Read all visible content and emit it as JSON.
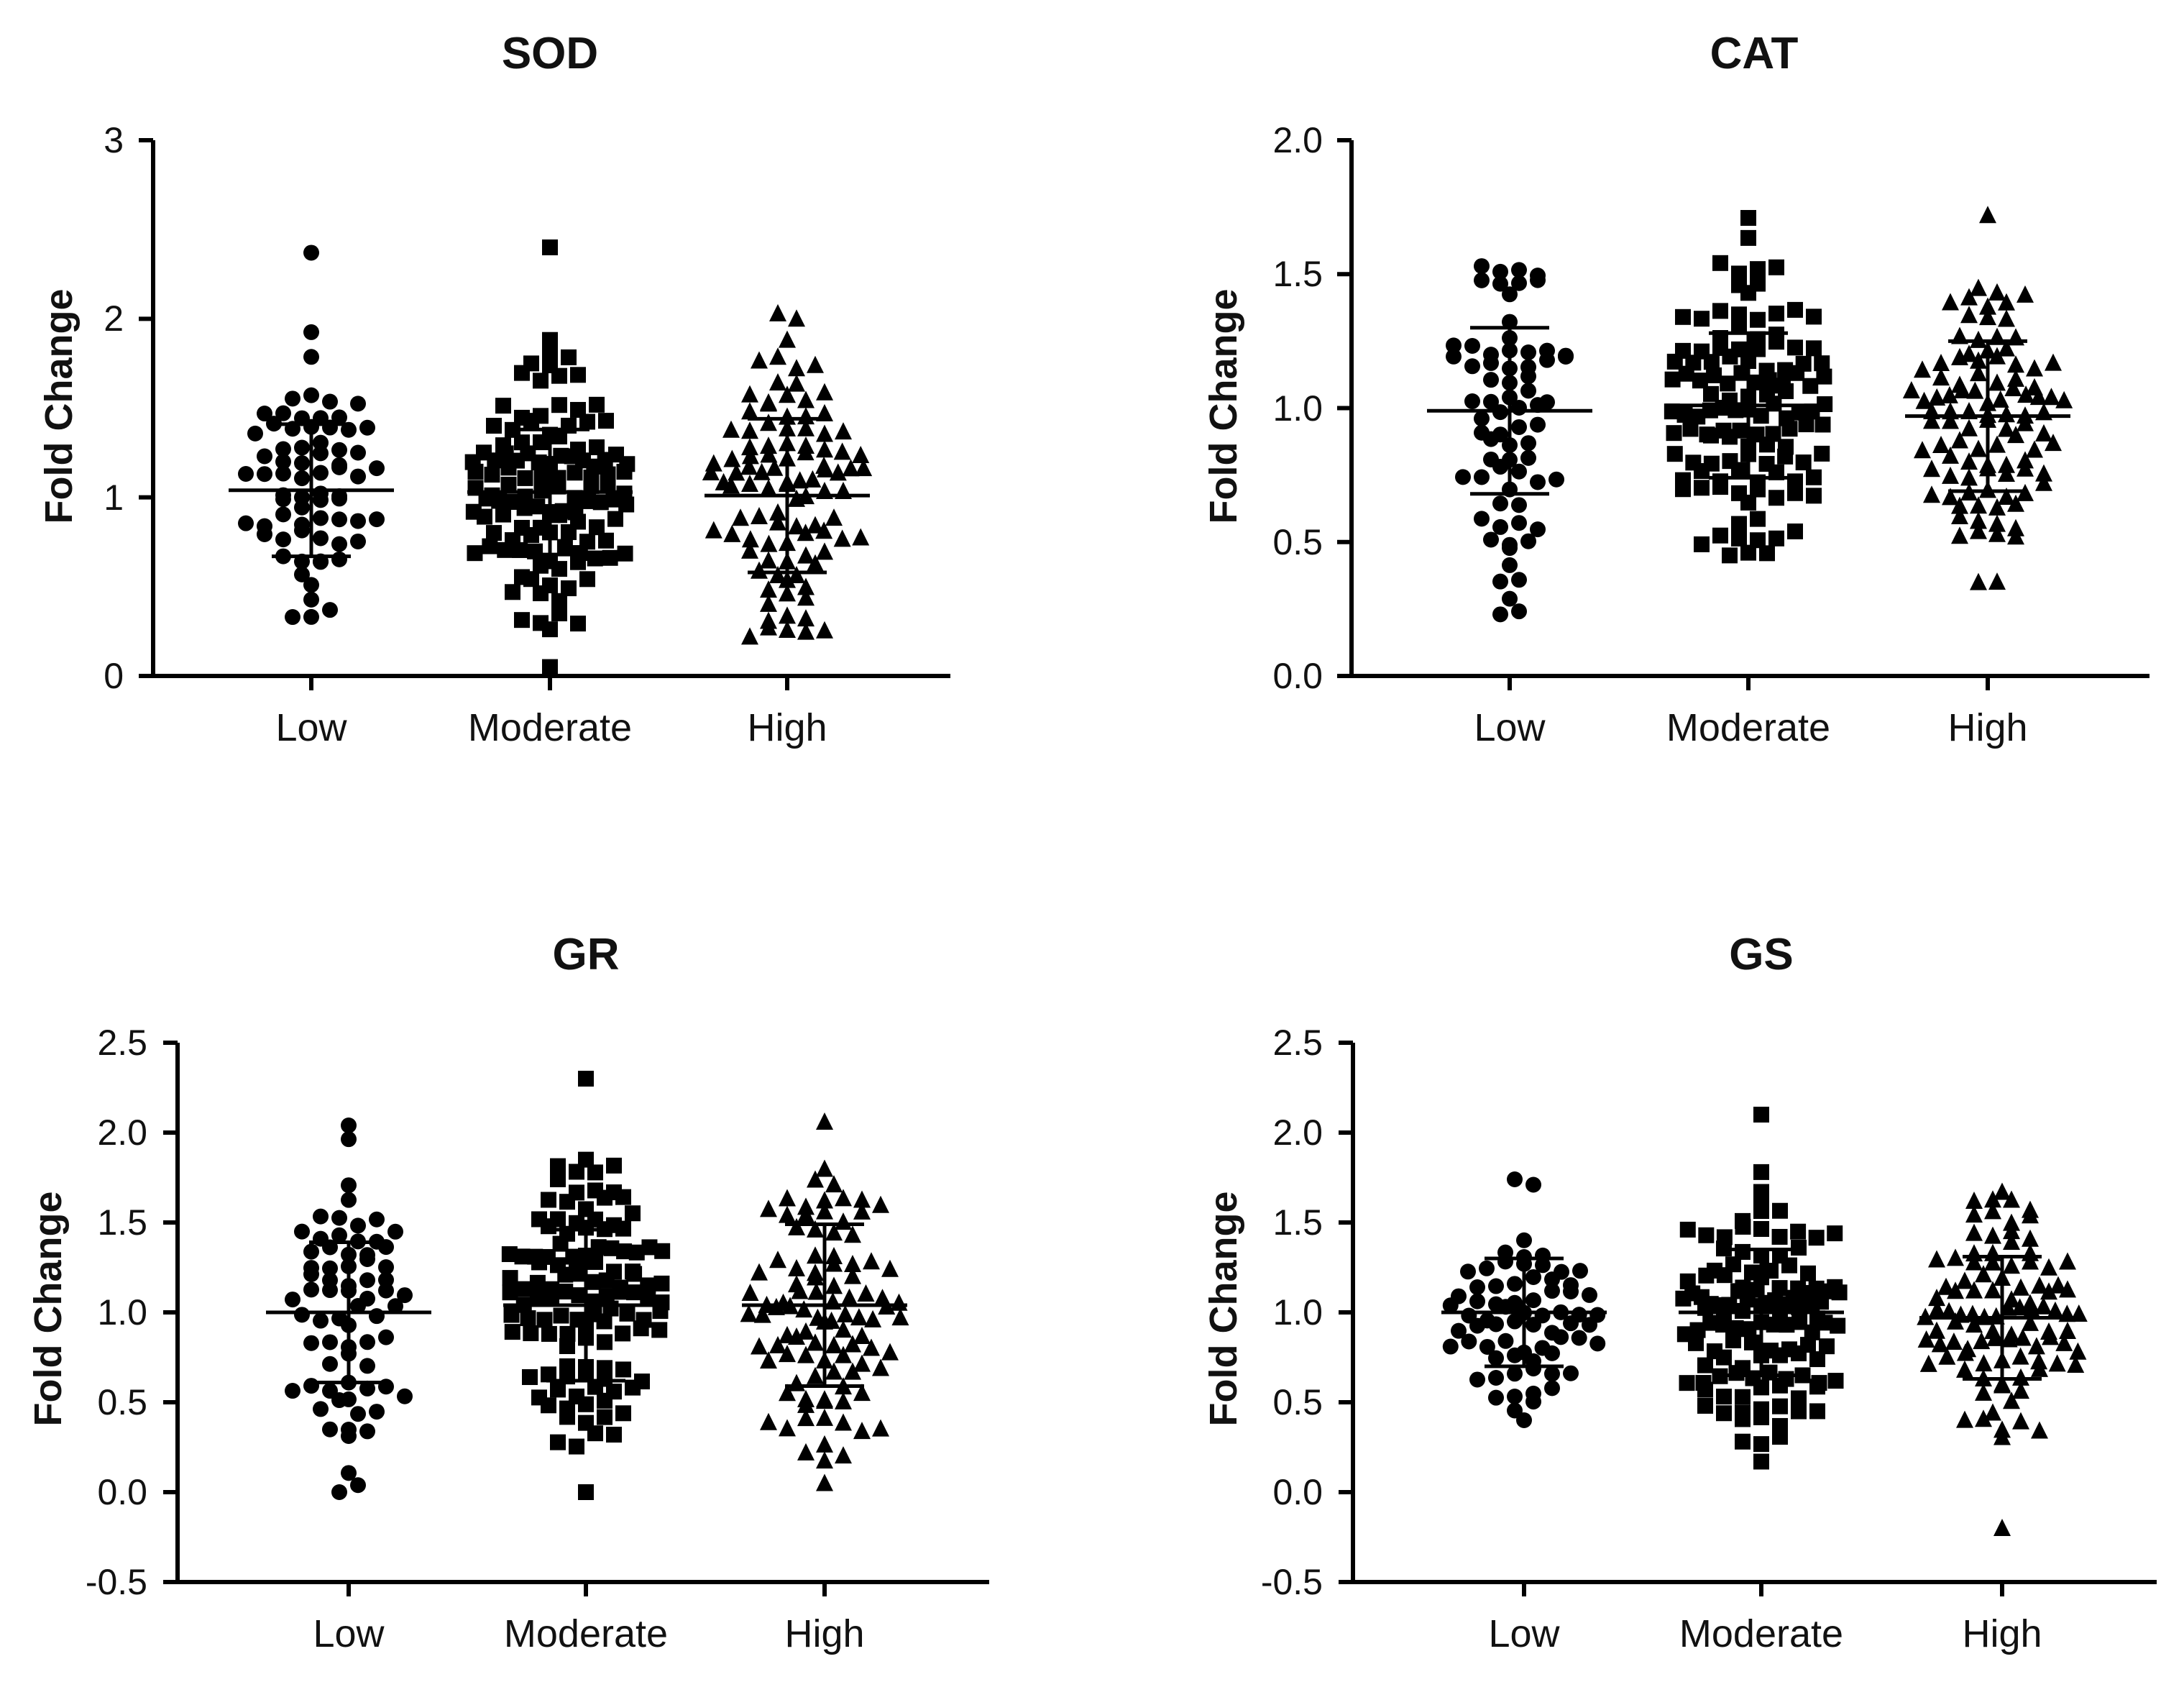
{
  "chart_data": [
    {
      "type": "scatter",
      "title": "SOD",
      "ylabel": "Fold Change",
      "xlabel": "",
      "ylim": [
        0,
        3
      ],
      "yticks": [
        "0",
        "1",
        "2",
        "3"
      ],
      "categories": [
        "Low",
        "Moderate",
        "High"
      ],
      "markers": [
        "circle",
        "square",
        "triangle"
      ],
      "groups": [
        {
          "name": "Low",
          "mean": 1.04,
          "sd": 0.37,
          "n": 70,
          "min": 0.33,
          "max": 2.37
        },
        {
          "name": "Moderate",
          "mean": 1.03,
          "sd": 0.35,
          "n": 120,
          "min": 0.05,
          "max": 2.4
        },
        {
          "name": "High",
          "mean": 1.01,
          "sd": 0.43,
          "n": 100,
          "min": 0.22,
          "max": 2.03
        }
      ]
    },
    {
      "type": "scatter",
      "title": "CAT",
      "ylabel": "Fold Change",
      "xlabel": "",
      "ylim": [
        0,
        2
      ],
      "yticks": [
        "0.0",
        "0.5",
        "1.0",
        "1.5",
        "2.0"
      ],
      "categories": [
        "Low",
        "Moderate",
        "High"
      ],
      "markers": [
        "circle",
        "square",
        "triangle"
      ],
      "groups": [
        {
          "name": "Low",
          "mean": 0.99,
          "sd": 0.31,
          "n": 70,
          "min": 0.23,
          "max": 1.53
        },
        {
          "name": "Moderate",
          "mean": 1.01,
          "sd": 0.27,
          "n": 120,
          "min": 0.45,
          "max": 1.71
        },
        {
          "name": "High",
          "mean": 0.97,
          "sd": 0.28,
          "n": 100,
          "min": 0.35,
          "max": 1.72
        }
      ]
    },
    {
      "type": "scatter",
      "title": "GR",
      "ylabel": "Fold Change",
      "xlabel": "",
      "ylim": [
        -0.5,
        2.5
      ],
      "yticks": [
        "-0.5",
        "0.0",
        "0.5",
        "1.0",
        "1.5",
        "2.0",
        "2.5"
      ],
      "categories": [
        "Low",
        "Moderate",
        "High"
      ],
      "markers": [
        "circle",
        "square",
        "triangle"
      ],
      "groups": [
        {
          "name": "Low",
          "mean": 1.0,
          "sd": 0.39,
          "n": 70,
          "min": 0.0,
          "max": 2.04
        },
        {
          "name": "Moderate",
          "mean": 1.04,
          "sd": 0.42,
          "n": 120,
          "min": 0.0,
          "max": 2.3
        },
        {
          "name": "High",
          "mean": 1.04,
          "sd": 0.45,
          "n": 100,
          "min": 0.05,
          "max": 2.06
        }
      ]
    },
    {
      "type": "scatter",
      "title": "GS",
      "ylabel": "Fold Change",
      "xlabel": "",
      "ylim": [
        -0.5,
        2.5
      ],
      "yticks": [
        "-0.5",
        "0.0",
        "0.5",
        "1.0",
        "1.5",
        "2.0",
        "2.5"
      ],
      "categories": [
        "Low",
        "Moderate",
        "High"
      ],
      "markers": [
        "circle",
        "square",
        "triangle"
      ],
      "groups": [
        {
          "name": "Low",
          "mean": 1.0,
          "sd": 0.3,
          "n": 70,
          "min": 0.4,
          "max": 1.74
        },
        {
          "name": "Moderate",
          "mean": 1.0,
          "sd": 0.35,
          "n": 120,
          "min": 0.17,
          "max": 2.1
        },
        {
          "name": "High",
          "mean": 0.97,
          "sd": 0.34,
          "n": 100,
          "min": -0.2,
          "max": 1.67
        }
      ]
    }
  ]
}
